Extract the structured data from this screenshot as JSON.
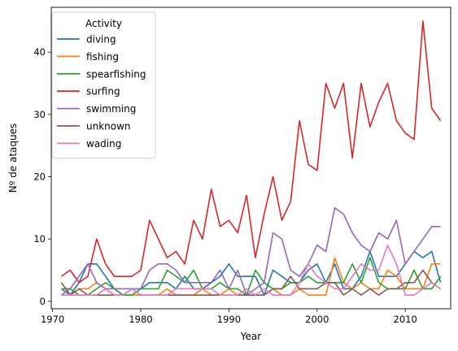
{
  "chart_data": {
    "type": "line",
    "xlabel": "Year",
    "ylabel": "Nº de ataques",
    "xlim": [
      1969.85,
      2015.15
    ],
    "ylim": [
      -1.2,
      47.2
    ],
    "xticks": [
      1970,
      1980,
      1990,
      2000,
      2010
    ],
    "yticks": [
      0,
      10,
      20,
      30,
      40
    ],
    "grid": false,
    "legend": {
      "title": "Activity",
      "placement": "top-left"
    },
    "series": [
      {
        "name": "diving",
        "color": "#1f77b4",
        "x": [
          1971,
          1972,
          1973,
          1974,
          1975,
          1976,
          1977,
          1978,
          1979,
          1980,
          1981,
          1982,
          1983,
          1984,
          1985,
          1986,
          1987,
          1988,
          1989,
          1990,
          1991,
          1992,
          1993,
          1994,
          1995,
          1996,
          1997,
          1998,
          1999,
          2000,
          2001,
          2002,
          2003,
          2004,
          2005,
          2006,
          2007,
          2008,
          2009,
          2010,
          2011,
          2012,
          2013,
          2014
        ],
        "y": [
          2,
          1,
          3,
          6,
          6,
          4,
          2,
          1,
          1,
          2,
          3,
          3,
          3,
          2,
          4,
          2,
          2,
          3,
          4,
          6,
          4,
          4,
          4,
          1,
          5,
          4,
          3,
          3,
          5,
          6,
          3,
          6,
          2,
          2,
          4,
          8,
          4,
          4,
          4,
          6,
          8,
          7,
          8,
          3
        ]
      },
      {
        "name": "fishing",
        "color": "#ff7f0e",
        "x": [
          1971,
          1972,
          1973,
          1974,
          1975,
          1976,
          1977,
          1978,
          1979,
          1980,
          1981,
          1982,
          1983,
          1984,
          1985,
          1986,
          1987,
          1988,
          1989,
          1990,
          1991,
          1992,
          1993,
          1994,
          1995,
          1996,
          1997,
          1998,
          1999,
          2000,
          2001,
          2002,
          2003,
          2004,
          2005,
          2006,
          2007,
          2008,
          2009,
          2010,
          2011,
          2012,
          2013,
          2014
        ],
        "y": [
          1,
          1,
          2,
          2,
          3,
          2,
          1,
          1,
          1,
          1,
          1,
          1,
          2,
          1,
          1,
          1,
          2,
          1,
          1,
          2,
          1,
          1,
          1,
          1,
          2,
          1,
          1,
          2,
          1,
          1,
          1,
          7,
          3,
          2,
          3,
          2,
          2,
          5,
          4,
          2,
          2,
          2,
          6,
          6
        ]
      },
      {
        "name": "spearfishing",
        "color": "#2ca02c",
        "x": [
          1971,
          1972,
          1973,
          1974,
          1975,
          1976,
          1977,
          1978,
          1979,
          1980,
          1981,
          1982,
          1983,
          1984,
          1985,
          1986,
          1987,
          1988,
          1989,
          1990,
          1991,
          1992,
          1993,
          1994,
          1995,
          1996,
          1997,
          1998,
          1999,
          2000,
          2001,
          2002,
          2003,
          2004,
          2005,
          2006,
          2007,
          2008,
          2009,
          2010,
          2011,
          2012,
          2013,
          2014
        ],
        "y": [
          2,
          2,
          1,
          1,
          2,
          3,
          2,
          1,
          1,
          2,
          2,
          2,
          5,
          4,
          3,
          5,
          2,
          2,
          3,
          2,
          2,
          1,
          5,
          3,
          2,
          2,
          3,
          3,
          4,
          3,
          3,
          3,
          3,
          6,
          3,
          7,
          3,
          2,
          2,
          2,
          5,
          2,
          2,
          4
        ]
      },
      {
        "name": "surfing",
        "color": "#d62728",
        "x": [
          1971,
          1972,
          1973,
          1974,
          1975,
          1976,
          1977,
          1978,
          1979,
          1980,
          1981,
          1982,
          1983,
          1984,
          1985,
          1986,
          1987,
          1988,
          1989,
          1990,
          1991,
          1992,
          1993,
          1994,
          1995,
          1996,
          1997,
          1998,
          1999,
          2000,
          2001,
          2002,
          2003,
          2004,
          2005,
          2006,
          2007,
          2008,
          2009,
          2010,
          2011,
          2012,
          2013,
          2014
        ],
        "y": [
          4,
          5,
          3,
          4,
          10,
          6,
          4,
          4,
          4,
          5,
          13,
          10,
          7,
          8,
          6,
          13,
          10,
          18,
          12,
          13,
          11,
          17,
          7,
          14,
          20,
          13,
          16,
          29,
          22,
          21,
          35,
          31,
          35,
          23,
          35,
          28,
          32,
          35,
          29,
          27,
          26,
          45,
          31,
          29
        ]
      },
      {
        "name": "swimming",
        "color": "#9467bd",
        "x": [
          1971,
          1972,
          1973,
          1974,
          1975,
          1976,
          1977,
          1978,
          1979,
          1980,
          1981,
          1982,
          1983,
          1984,
          1985,
          1986,
          1987,
          1988,
          1989,
          1990,
          1991,
          1992,
          1993,
          1994,
          1995,
          1996,
          1997,
          1998,
          1999,
          2000,
          2001,
          2002,
          2003,
          2004,
          2005,
          2006,
          2007,
          2008,
          2009,
          2010,
          2011,
          2012,
          2013,
          2014
        ],
        "y": [
          1,
          2,
          4,
          6,
          3,
          2,
          2,
          2,
          2,
          2,
          5,
          6,
          6,
          5,
          3,
          3,
          3,
          3,
          5,
          2,
          5,
          1,
          2,
          3,
          11,
          10,
          5,
          4,
          6,
          9,
          8,
          15,
          14,
          11,
          9,
          8,
          11,
          10,
          13,
          6,
          8,
          10,
          12,
          12
        ]
      },
      {
        "name": "unknown",
        "color": "#8c564b",
        "x": [
          1971,
          1972,
          1973,
          1974,
          1975,
          1976,
          1977,
          1978,
          1979,
          1980,
          1981,
          1982,
          1983,
          1984,
          1985,
          1986,
          1987,
          1988,
          1989,
          1990,
          1991,
          1992,
          1993,
          1994,
          1995,
          1996,
          1997,
          1998,
          1999,
          2000,
          2001,
          2002,
          2003,
          2004,
          2005,
          2006,
          2007,
          2008,
          2009,
          2010,
          2011,
          2012,
          2013,
          2014
        ],
        "y": [
          3,
          1,
          2,
          1,
          1,
          1,
          1,
          1,
          2,
          1,
          1,
          1,
          1,
          1,
          1,
          1,
          1,
          1,
          1,
          1,
          1,
          1,
          1,
          1,
          2,
          2,
          4,
          2,
          2,
          2,
          3,
          3,
          1,
          2,
          1,
          2,
          1,
          2,
          2,
          3,
          3,
          5,
          3,
          2
        ]
      },
      {
        "name": "wading",
        "color": "#e377c2",
        "x": [
          1971,
          1972,
          1973,
          1974,
          1975,
          1976,
          1977,
          1978,
          1979,
          1980,
          1981,
          1982,
          1983,
          1984,
          1985,
          1986,
          1987,
          1988,
          1989,
          1990,
          1991,
          1992,
          1993,
          1994,
          1995,
          1996,
          1997,
          1998,
          1999,
          2000,
          2001,
          2002,
          2003,
          2004,
          2005,
          2006,
          2007,
          2008,
          2009,
          2010,
          2011,
          2012,
          2013,
          2014
        ],
        "y": [
          1,
          1,
          1,
          1,
          1,
          2,
          1,
          1,
          2,
          1,
          1,
          1,
          1,
          2,
          2,
          2,
          2,
          2,
          1,
          1,
          1,
          2,
          1,
          2,
          1,
          1,
          1,
          3,
          6,
          4,
          3,
          2,
          2,
          4,
          6,
          5,
          5,
          9,
          6,
          1,
          1,
          2,
          3,
          2
        ]
      }
    ]
  }
}
